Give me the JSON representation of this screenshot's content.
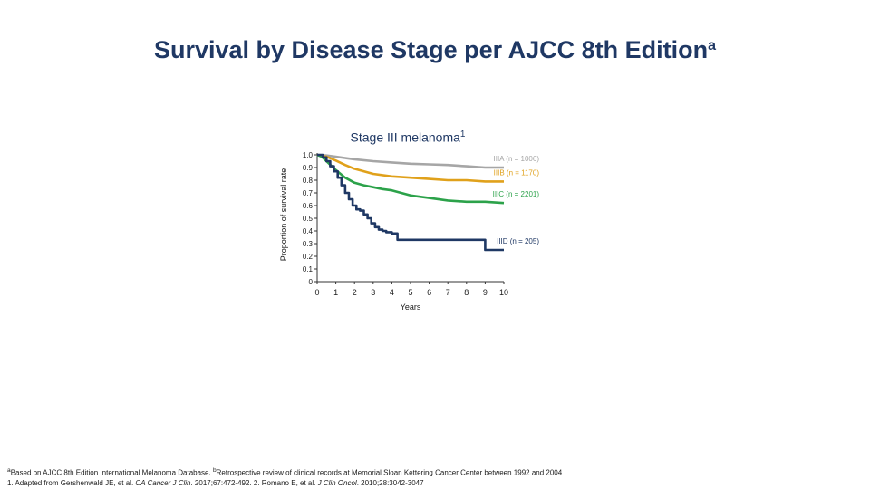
{
  "slide": {
    "title": "Survival by Disease Stage per AJCC 8th Edition",
    "title_sup": "a"
  },
  "footnotes": {
    "line1_sup_a": "a",
    "line1_a": "Based on AJCC 8th Edition International Melanoma Database. ",
    "line1_sup_b": "b",
    "line1_b": "Retrospective review of clinical records at Memorial Sloan Kettering Cancer Center between 1992 and 2004",
    "line2_a": "1. Adapted from Gershenwald JE, et al. ",
    "line2_journal1": "CA Cancer J Clin",
    "line2_b": ". 2017;67:472-492. 2. Romano E, et al. ",
    "line2_journal2": "J Clin Oncol",
    "line2_c": ". 2010;28:3042-3047"
  },
  "chart_data": {
    "type": "line",
    "title": "Stage III melanoma",
    "title_sup": "1",
    "xlabel": "Years",
    "ylabel": "Proportion of survival rate",
    "xlim": [
      0,
      10
    ],
    "ylim": [
      0,
      1.0
    ],
    "xticks": [
      "0",
      "1",
      "2",
      "3",
      "4",
      "5",
      "6",
      "7",
      "8",
      "9",
      "10"
    ],
    "yticks": [
      "0",
      "0.1",
      "0.2",
      "0.3",
      "0.4",
      "0.5",
      "0.6",
      "0.7",
      "0.8",
      "0.9",
      "1.0"
    ],
    "series": [
      {
        "name": "IIIA (n = 1006)",
        "color": "#a6a6a6",
        "step": false,
        "x": [
          0,
          0.5,
          1,
          1.5,
          2,
          3,
          4,
          5,
          6,
          7,
          8,
          9,
          10
        ],
        "y": [
          1.0,
          0.995,
          0.985,
          0.975,
          0.965,
          0.95,
          0.94,
          0.93,
          0.925,
          0.92,
          0.91,
          0.9,
          0.9
        ]
      },
      {
        "name": "IIIB (n = 1170)",
        "color": "#e0a11b",
        "step": false,
        "x": [
          0,
          0.5,
          1,
          1.5,
          2,
          3,
          4,
          5,
          6,
          7,
          8,
          9,
          10
        ],
        "y": [
          1.0,
          0.985,
          0.955,
          0.92,
          0.89,
          0.85,
          0.83,
          0.82,
          0.81,
          0.8,
          0.8,
          0.79,
          0.79
        ]
      },
      {
        "name": "IIIC (n = 2201)",
        "color": "#2ca24a",
        "step": false,
        "x": [
          0,
          0.25,
          0.5,
          1,
          1.5,
          2,
          2.5,
          3,
          3.5,
          4,
          5,
          6,
          7,
          8,
          9,
          10
        ],
        "y": [
          1.0,
          0.985,
          0.95,
          0.88,
          0.82,
          0.78,
          0.76,
          0.745,
          0.73,
          0.72,
          0.68,
          0.66,
          0.64,
          0.63,
          0.63,
          0.62
        ]
      },
      {
        "name": "IIID (n = 205)",
        "color": "#1f3864",
        "step": true,
        "x": [
          0,
          0.3,
          0.5,
          0.7,
          0.9,
          1.1,
          1.3,
          1.5,
          1.7,
          1.9,
          2.1,
          2.3,
          2.5,
          2.7,
          2.9,
          3.1,
          3.3,
          3.5,
          3.7,
          4.0,
          4.3,
          8.5,
          9.0,
          10
        ],
        "y": [
          1.0,
          0.98,
          0.95,
          0.91,
          0.87,
          0.82,
          0.76,
          0.7,
          0.65,
          0.6,
          0.57,
          0.56,
          0.53,
          0.5,
          0.46,
          0.43,
          0.41,
          0.4,
          0.39,
          0.38,
          0.33,
          0.33,
          0.25,
          0.25
        ]
      }
    ]
  }
}
